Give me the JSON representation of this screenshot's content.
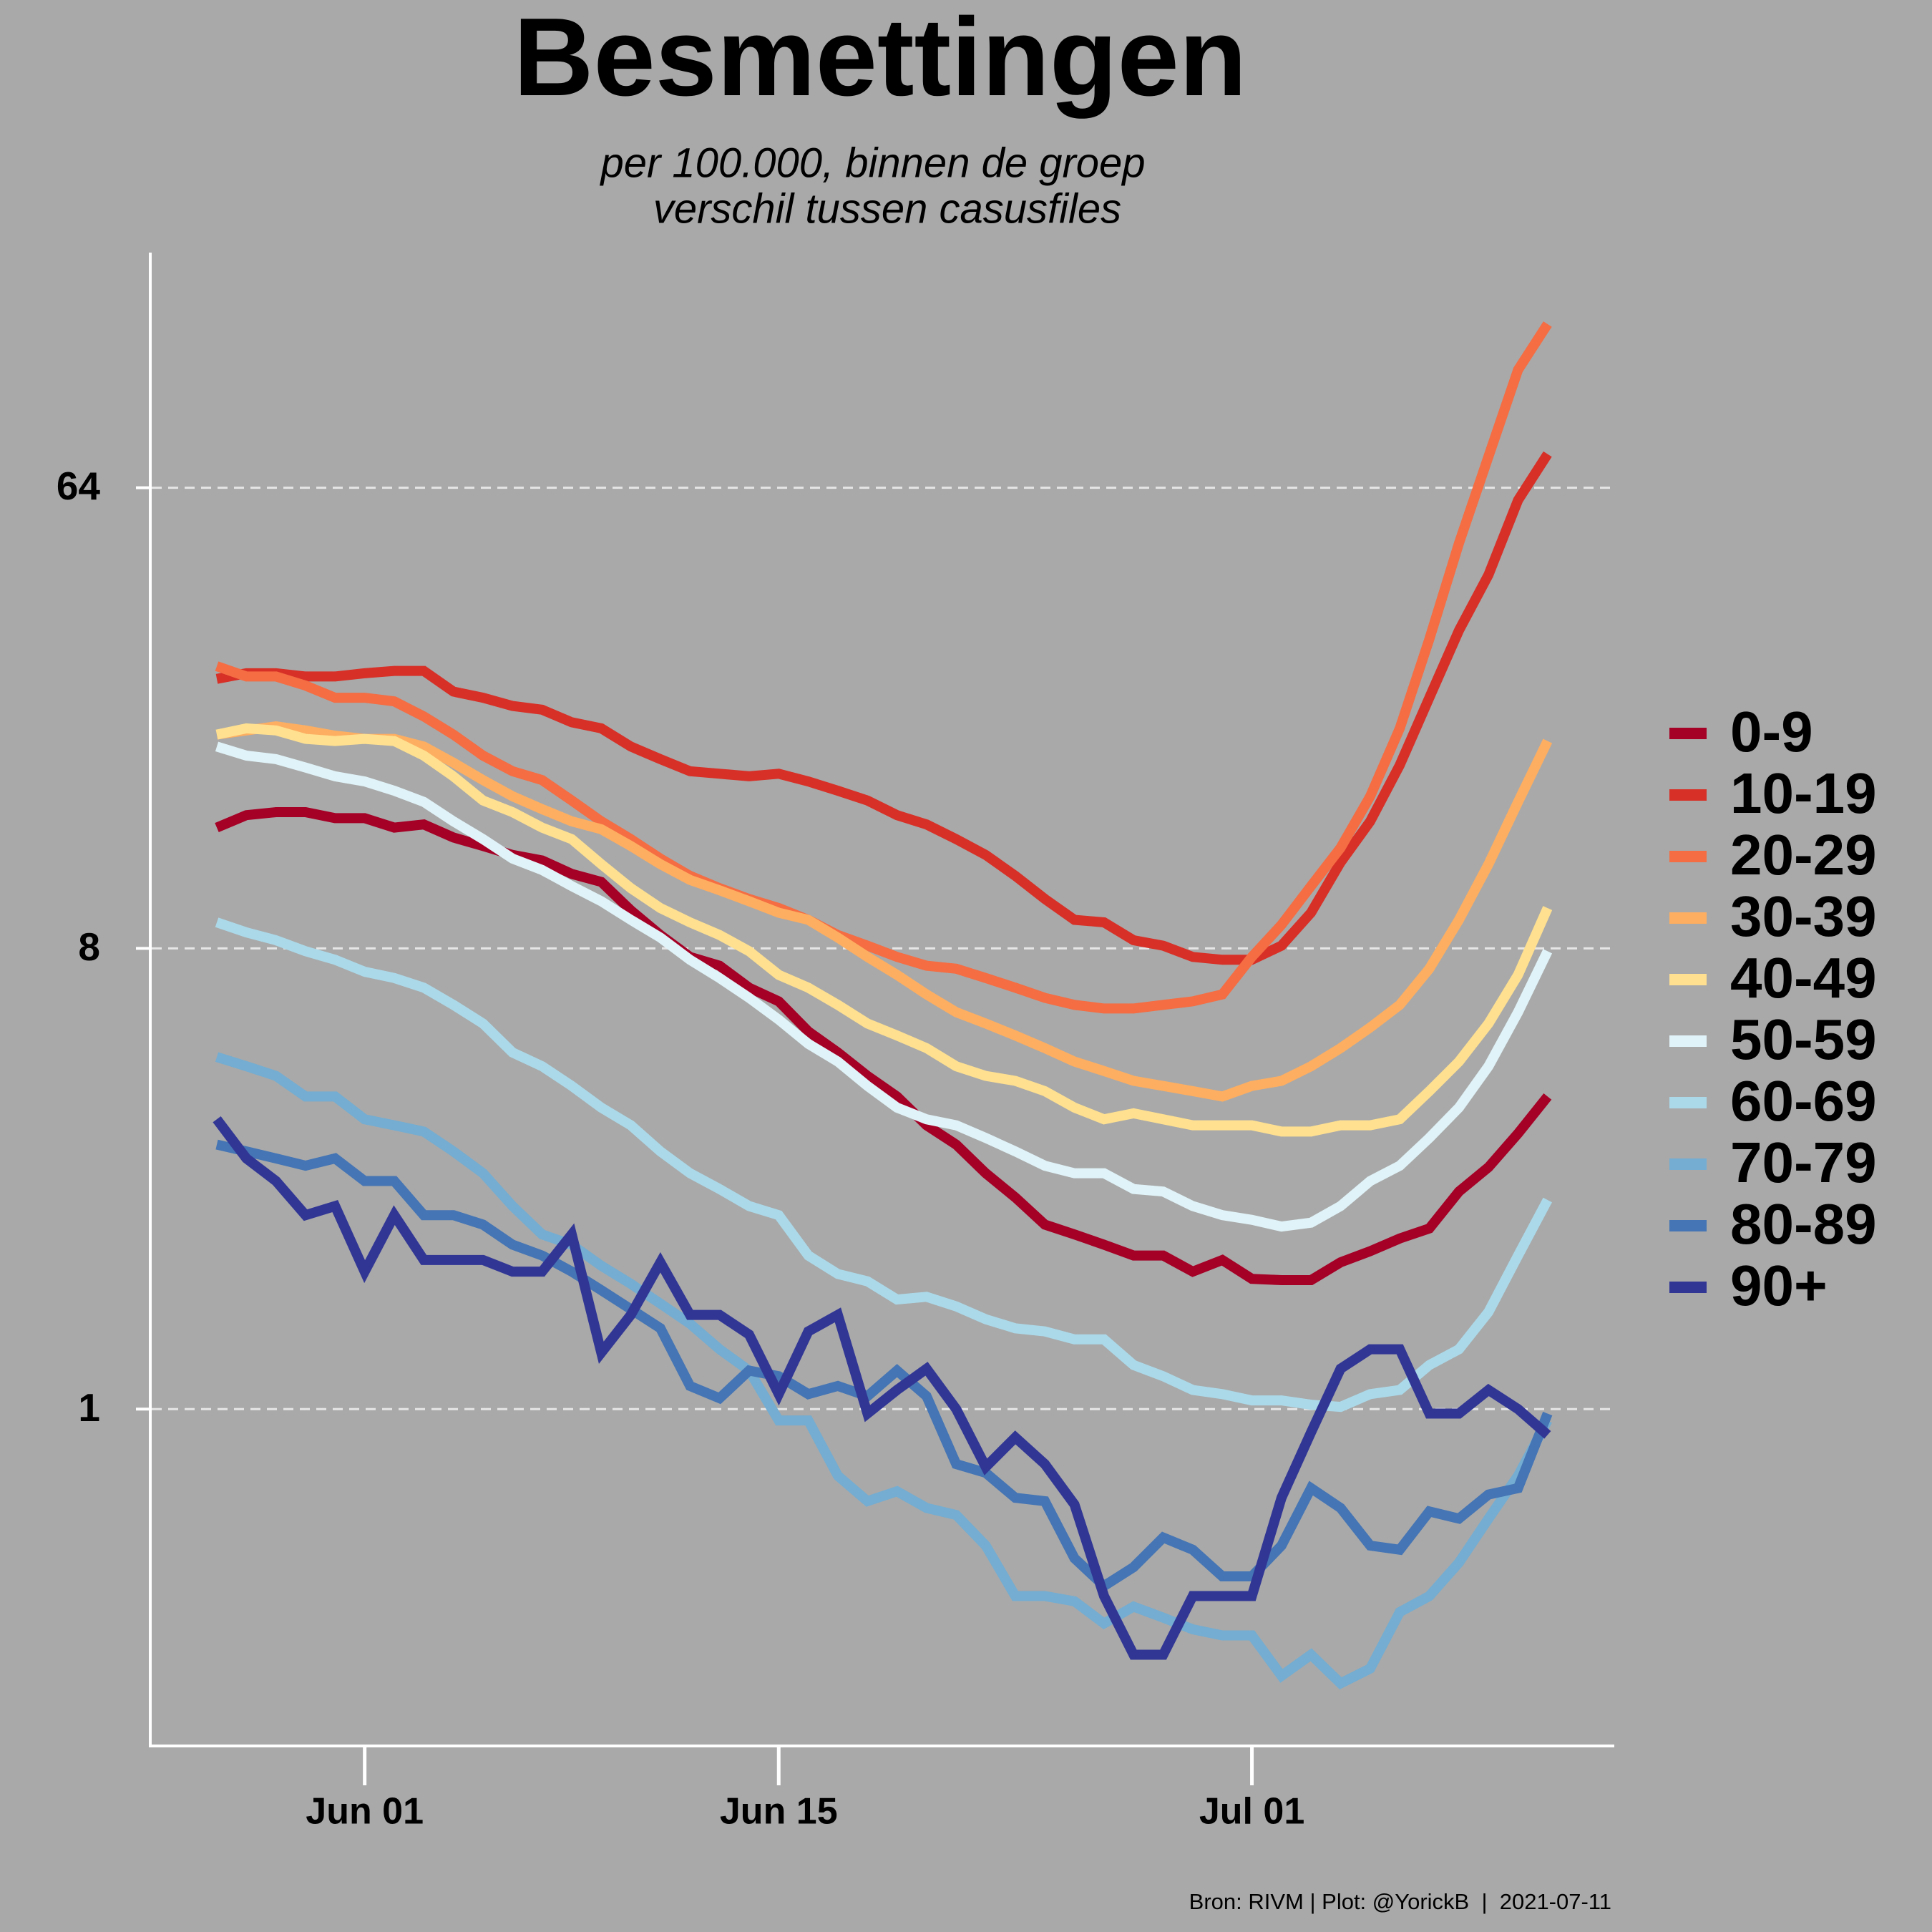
{
  "chart_data": {
    "type": "line",
    "title": "Besmettingen",
    "subtitle": [
      "per 100.000, binnen de groep",
      "verschil tussen casusfiles"
    ],
    "caption": "Bron: RIVM | Plot: @YorickB  |  2021-07-11",
    "x": [
      "May 27",
      "May 28",
      "May 29",
      "May 30",
      "May 31",
      "Jun 01",
      "Jun 02",
      "Jun 03",
      "Jun 04",
      "Jun 05",
      "Jun 06",
      "Jun 07",
      "Jun 08",
      "Jun 09",
      "Jun 10",
      "Jun 11",
      "Jun 12",
      "Jun 13",
      "Jun 14",
      "Jun 15",
      "Jun 16",
      "Jun 17",
      "Jun 18",
      "Jun 19",
      "Jun 20",
      "Jun 21",
      "Jun 22",
      "Jun 23",
      "Jun 24",
      "Jun 25",
      "Jun 26",
      "Jun 27",
      "Jun 28",
      "Jun 29",
      "Jun 30",
      "Jul 01",
      "Jul 02",
      "Jul 03",
      "Jul 04",
      "Jul 05",
      "Jul 06",
      "Jul 07",
      "Jul 08",
      "Jul 09",
      "Jul 10",
      "Jul 11"
    ],
    "xticks": [
      "Jun 01",
      "Jun 15",
      "Jul 01"
    ],
    "ylim": [
      0.22,
      185
    ],
    "yticks": [
      1,
      8,
      64
    ],
    "log_scale": true,
    "grid": true,
    "legend": "right",
    "series": [
      {
        "name": "0-9",
        "color": "#a50026",
        "values": [
          13.8,
          14.6,
          14.8,
          14.8,
          14.4,
          14.4,
          13.8,
          14.0,
          13.2,
          12.7,
          12.2,
          11.9,
          11.2,
          10.8,
          9.5,
          8.5,
          7.7,
          7.4,
          6.7,
          6.3,
          5.5,
          5.0,
          4.5,
          4.1,
          3.6,
          3.3,
          2.9,
          2.6,
          2.3,
          2.2,
          2.1,
          2.0,
          2.0,
          1.86,
          1.96,
          1.8,
          1.79,
          1.79,
          1.94,
          2.04,
          2.16,
          2.26,
          2.67,
          2.98,
          3.47,
          4.1
        ]
      },
      {
        "name": "10-19",
        "color": "#d73027",
        "values": [
          27,
          27.7,
          27.7,
          27.3,
          27.3,
          27.7,
          28,
          28,
          25.5,
          24.8,
          23.9,
          23.5,
          22.2,
          21.6,
          19.9,
          18.8,
          17.8,
          17.6,
          17.4,
          17.6,
          17.0,
          16.3,
          15.6,
          14.6,
          14.0,
          13.1,
          12.2,
          11.1,
          10.0,
          9.1,
          9.0,
          8.3,
          8.1,
          7.7,
          7.6,
          7.6,
          8.1,
          9.4,
          11.8,
          14.2,
          18.3,
          24.8,
          33.6,
          43.2,
          60.5,
          74.5
        ]
      },
      {
        "name": "20-29",
        "color": "#f46d43",
        "values": [
          28.6,
          27.3,
          27.3,
          26.2,
          24.8,
          24.8,
          24.4,
          22.8,
          21.0,
          19.1,
          17.8,
          17.1,
          15.6,
          14.2,
          13.1,
          12.0,
          11.1,
          10.5,
          10.0,
          9.6,
          9.1,
          8.5,
          8.1,
          7.7,
          7.4,
          7.3,
          7.0,
          6.7,
          6.4,
          6.2,
          6.1,
          6.1,
          6.2,
          6.3,
          6.5,
          7.7,
          8.9,
          10.6,
          12.6,
          15.9,
          21.6,
          32.3,
          49.8,
          73.7,
          109,
          134
        ]
      },
      {
        "name": "30-39",
        "color": "#fdae61",
        "values": [
          21.0,
          21.4,
          21.8,
          21.4,
          20.9,
          20.6,
          20.6,
          19.9,
          18.5,
          17.1,
          15.9,
          15.0,
          14.2,
          13.7,
          12.7,
          11.7,
          10.9,
          10.4,
          9.9,
          9.4,
          9.1,
          8.4,
          7.7,
          7.1,
          6.5,
          6.0,
          5.7,
          5.4,
          5.1,
          4.8,
          4.6,
          4.4,
          4.3,
          4.2,
          4.1,
          4.3,
          4.4,
          4.7,
          5.1,
          5.6,
          6.2,
          7.3,
          9.1,
          11.7,
          15.5,
          20.4
        ]
      },
      {
        "name": "40-49",
        "color": "#fee090",
        "values": [
          21.0,
          21.6,
          21.4,
          20.6,
          20.4,
          20.6,
          20.4,
          19.1,
          17.4,
          15.6,
          14.8,
          13.8,
          13.1,
          11.7,
          10.5,
          9.6,
          9.0,
          8.5,
          7.9,
          7.1,
          6.7,
          6.2,
          5.7,
          5.4,
          5.1,
          4.7,
          4.5,
          4.4,
          4.2,
          3.9,
          3.7,
          3.8,
          3.7,
          3.6,
          3.6,
          3.6,
          3.5,
          3.5,
          3.6,
          3.6,
          3.7,
          4.2,
          4.8,
          5.7,
          7.1,
          9.6
        ]
      },
      {
        "name": "50-59",
        "color": "#e0f3f8",
        "values": [
          19.9,
          19.1,
          18.8,
          18.1,
          17.4,
          17.0,
          16.3,
          15.5,
          14.2,
          13.1,
          12.0,
          11.4,
          10.6,
          9.9,
          9.1,
          8.4,
          7.6,
          7.0,
          6.4,
          5.8,
          5.2,
          4.8,
          4.3,
          3.9,
          3.7,
          3.6,
          3.4,
          3.2,
          3.0,
          2.9,
          2.9,
          2.7,
          2.67,
          2.5,
          2.4,
          2.35,
          2.28,
          2.32,
          2.5,
          2.8,
          3.0,
          3.4,
          3.9,
          4.7,
          6.0,
          7.9
        ]
      },
      {
        "name": "60-69",
        "color": "#abd9e9",
        "values": [
          9.0,
          8.6,
          8.3,
          7.9,
          7.6,
          7.2,
          7.0,
          6.7,
          6.2,
          5.7,
          5.0,
          4.7,
          4.3,
          3.9,
          3.6,
          3.2,
          2.9,
          2.7,
          2.5,
          2.4,
          2.0,
          1.84,
          1.78,
          1.64,
          1.66,
          1.59,
          1.5,
          1.44,
          1.42,
          1.37,
          1.37,
          1.22,
          1.16,
          1.09,
          1.07,
          1.04,
          1.04,
          1.02,
          1.01,
          1.07,
          1.09,
          1.22,
          1.31,
          1.55,
          2.0,
          2.57
        ]
      },
      {
        "name": "70-79",
        "color": "#74add1",
        "values": [
          4.9,
          4.7,
          4.5,
          4.1,
          4.1,
          3.7,
          3.6,
          3.5,
          3.2,
          2.9,
          2.5,
          2.2,
          2.1,
          1.91,
          1.76,
          1.61,
          1.47,
          1.31,
          1.19,
          0.95,
          0.95,
          0.74,
          0.66,
          0.69,
          0.64,
          0.62,
          0.54,
          0.43,
          0.43,
          0.42,
          0.38,
          0.41,
          0.39,
          0.37,
          0.36,
          0.36,
          0.3,
          0.33,
          0.29,
          0.31,
          0.4,
          0.43,
          0.5,
          0.61,
          0.74,
          0.95
        ]
      },
      {
        "name": "80-89",
        "color": "#4575b4",
        "values": [
          3.3,
          3.2,
          3.1,
          3.0,
          3.1,
          2.8,
          2.8,
          2.4,
          2.4,
          2.3,
          2.1,
          2.0,
          1.86,
          1.71,
          1.57,
          1.44,
          1.11,
          1.05,
          1.19,
          1.16,
          1.07,
          1.11,
          1.06,
          1.19,
          1.06,
          0.78,
          0.75,
          0.67,
          0.66,
          0.51,
          0.45,
          0.49,
          0.56,
          0.53,
          0.47,
          0.47,
          0.54,
          0.7,
          0.64,
          0.54,
          0.53,
          0.63,
          0.61,
          0.68,
          0.7,
          0.98
        ]
      },
      {
        "name": "90+",
        "color": "#313695",
        "values": [
          3.7,
          3.1,
          2.8,
          2.4,
          2.5,
          1.86,
          2.4,
          1.96,
          1.96,
          1.96,
          1.86,
          1.86,
          2.2,
          1.29,
          1.53,
          1.94,
          1.53,
          1.53,
          1.4,
          1.07,
          1.42,
          1.53,
          0.98,
          1.09,
          1.2,
          1.0,
          0.77,
          0.88,
          0.78,
          0.65,
          0.43,
          0.33,
          0.33,
          0.43,
          0.43,
          0.43,
          0.67,
          0.9,
          1.2,
          1.31,
          1.31,
          0.98,
          0.98,
          1.09,
          1.0,
          0.89
        ]
      }
    ]
  }
}
